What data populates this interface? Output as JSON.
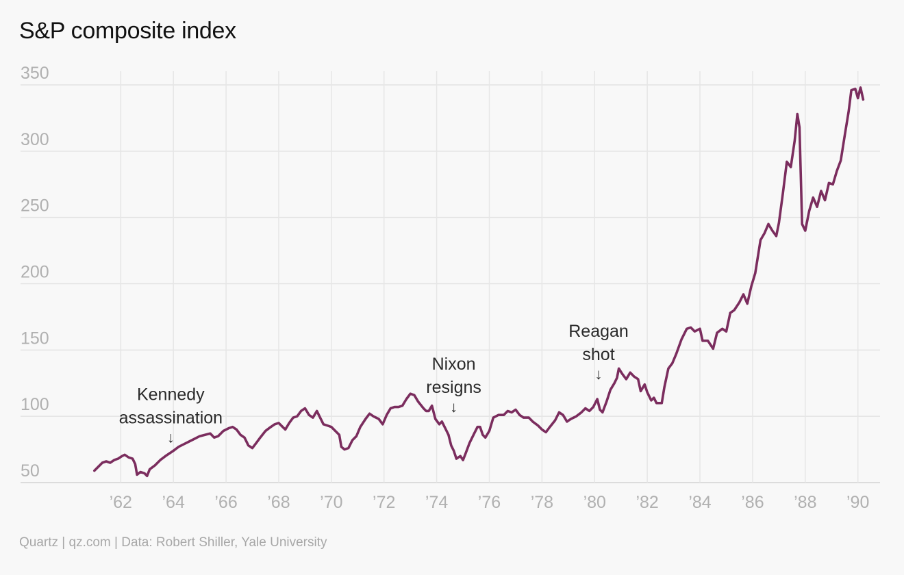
{
  "chart_data": {
    "type": "line",
    "title": "S&P composite index",
    "source": "Quartz | qz.com | Data: Robert Shiller, Yale University",
    "xlabel": "",
    "ylabel": "",
    "xlim": [
      1960.9,
      1990.45
    ],
    "ylim": [
      50,
      350
    ],
    "yticks": [
      50,
      100,
      150,
      200,
      250,
      300,
      350
    ],
    "xticks": [
      {
        "value": 1962,
        "label": "’62"
      },
      {
        "value": 1964,
        "label": "’64"
      },
      {
        "value": 1966,
        "label": "’66"
      },
      {
        "value": 1968,
        "label": "’68"
      },
      {
        "value": 1970,
        "label": "’70"
      },
      {
        "value": 1972,
        "label": "’72"
      },
      {
        "value": 1974,
        "label": "’74"
      },
      {
        "value": 1976,
        "label": "’76"
      },
      {
        "value": 1978,
        "label": "’78"
      },
      {
        "value": 1980,
        "label": "’80"
      },
      {
        "value": 1982,
        "label": "’82"
      },
      {
        "value": 1984,
        "label": "’84"
      },
      {
        "value": 1986,
        "label": "’86"
      },
      {
        "value": 1988,
        "label": "’88"
      },
      {
        "value": 1990,
        "label": "’90"
      }
    ],
    "grid": true,
    "line_color": "#7b2d5e",
    "series": [
      {
        "values": [
          [
            1961.0,
            59
          ],
          [
            1961.15,
            62
          ],
          [
            1961.3,
            65
          ],
          [
            1961.45,
            66
          ],
          [
            1961.6,
            65
          ],
          [
            1961.75,
            67
          ],
          [
            1961.9,
            68
          ],
          [
            1962.05,
            70
          ],
          [
            1962.15,
            71
          ],
          [
            1962.3,
            69
          ],
          [
            1962.45,
            68
          ],
          [
            1962.55,
            64
          ],
          [
            1962.62,
            56
          ],
          [
            1962.75,
            58
          ],
          [
            1962.9,
            57
          ],
          [
            1963.0,
            55
          ],
          [
            1963.1,
            60
          ],
          [
            1963.3,
            63
          ],
          [
            1963.5,
            67
          ],
          [
            1963.7,
            70
          ],
          [
            1963.85,
            72
          ],
          [
            1964.0,
            74
          ],
          [
            1964.2,
            77
          ],
          [
            1964.4,
            79
          ],
          [
            1964.6,
            81
          ],
          [
            1964.8,
            83
          ],
          [
            1965.0,
            85
          ],
          [
            1965.2,
            86
          ],
          [
            1965.4,
            87
          ],
          [
            1965.55,
            84
          ],
          [
            1965.7,
            85
          ],
          [
            1965.9,
            89
          ],
          [
            1966.1,
            91
          ],
          [
            1966.25,
            92
          ],
          [
            1966.4,
            90
          ],
          [
            1966.55,
            86
          ],
          [
            1966.7,
            84
          ],
          [
            1966.85,
            78
          ],
          [
            1967.0,
            76
          ],
          [
            1967.15,
            80
          ],
          [
            1967.3,
            84
          ],
          [
            1967.5,
            89
          ],
          [
            1967.7,
            92
          ],
          [
            1967.85,
            94
          ],
          [
            1968.0,
            95
          ],
          [
            1968.15,
            92
          ],
          [
            1968.25,
            90
          ],
          [
            1968.4,
            95
          ],
          [
            1968.55,
            99
          ],
          [
            1968.7,
            100
          ],
          [
            1968.85,
            104
          ],
          [
            1969.0,
            106
          ],
          [
            1969.15,
            101
          ],
          [
            1969.3,
            99
          ],
          [
            1969.45,
            104
          ],
          [
            1969.55,
            100
          ],
          [
            1969.7,
            94
          ],
          [
            1969.85,
            93
          ],
          [
            1970.0,
            92
          ],
          [
            1970.15,
            89
          ],
          [
            1970.3,
            86
          ],
          [
            1970.38,
            77
          ],
          [
            1970.5,
            75
          ],
          [
            1970.65,
            76
          ],
          [
            1970.8,
            82
          ],
          [
            1970.95,
            85
          ],
          [
            1971.1,
            92
          ],
          [
            1971.3,
            98
          ],
          [
            1971.45,
            102
          ],
          [
            1971.6,
            100
          ],
          [
            1971.8,
            98
          ],
          [
            1971.95,
            94
          ],
          [
            1972.1,
            101
          ],
          [
            1972.25,
            106
          ],
          [
            1972.4,
            107
          ],
          [
            1972.55,
            107
          ],
          [
            1972.7,
            108
          ],
          [
            1972.85,
            113
          ],
          [
            1973.0,
            117
          ],
          [
            1973.15,
            116
          ],
          [
            1973.3,
            111
          ],
          [
            1973.5,
            106
          ],
          [
            1973.6,
            104
          ],
          [
            1973.7,
            104
          ],
          [
            1973.82,
            108
          ],
          [
            1973.95,
            98
          ],
          [
            1974.1,
            94
          ],
          [
            1974.2,
            96
          ],
          [
            1974.35,
            90
          ],
          [
            1974.45,
            86
          ],
          [
            1974.55,
            78
          ],
          [
            1974.65,
            74
          ],
          [
            1974.75,
            68
          ],
          [
            1974.9,
            70
          ],
          [
            1975.0,
            67
          ],
          [
            1975.1,
            72
          ],
          [
            1975.25,
            80
          ],
          [
            1975.4,
            86
          ],
          [
            1975.55,
            92
          ],
          [
            1975.65,
            92
          ],
          [
            1975.75,
            86
          ],
          [
            1975.85,
            84
          ],
          [
            1976.0,
            89
          ],
          [
            1976.15,
            99
          ],
          [
            1976.35,
            101
          ],
          [
            1976.55,
            101
          ],
          [
            1976.7,
            104
          ],
          [
            1976.85,
            103
          ],
          [
            1977.0,
            105
          ],
          [
            1977.15,
            101
          ],
          [
            1977.3,
            99
          ],
          [
            1977.5,
            99
          ],
          [
            1977.65,
            96
          ],
          [
            1977.85,
            93
          ],
          [
            1978.0,
            90
          ],
          [
            1978.15,
            88
          ],
          [
            1978.3,
            92
          ],
          [
            1978.5,
            97
          ],
          [
            1978.65,
            103
          ],
          [
            1978.8,
            101
          ],
          [
            1978.95,
            96
          ],
          [
            1979.1,
            98
          ],
          [
            1979.3,
            100
          ],
          [
            1979.5,
            103
          ],
          [
            1979.65,
            106
          ],
          [
            1979.8,
            104
          ],
          [
            1979.95,
            107
          ],
          [
            1980.1,
            113
          ],
          [
            1980.2,
            105
          ],
          [
            1980.3,
            103
          ],
          [
            1980.45,
            111
          ],
          [
            1980.6,
            120
          ],
          [
            1980.75,
            125
          ],
          [
            1980.85,
            129
          ],
          [
            1980.92,
            136
          ],
          [
            1981.05,
            132
          ],
          [
            1981.2,
            128
          ],
          [
            1981.35,
            133
          ],
          [
            1981.5,
            130
          ],
          [
            1981.65,
            128
          ],
          [
            1981.75,
            119
          ],
          [
            1981.9,
            124
          ],
          [
            1982.0,
            118
          ],
          [
            1982.15,
            112
          ],
          [
            1982.25,
            114
          ],
          [
            1982.35,
            110
          ],
          [
            1982.55,
            110
          ],
          [
            1982.65,
            122
          ],
          [
            1982.8,
            136
          ],
          [
            1982.95,
            140
          ],
          [
            1983.1,
            147
          ],
          [
            1983.3,
            158
          ],
          [
            1983.5,
            166
          ],
          [
            1983.65,
            167
          ],
          [
            1983.8,
            164
          ],
          [
            1984.0,
            166
          ],
          [
            1984.1,
            157
          ],
          [
            1984.3,
            157
          ],
          [
            1984.5,
            151
          ],
          [
            1984.65,
            163
          ],
          [
            1984.85,
            166
          ],
          [
            1985.0,
            164
          ],
          [
            1985.15,
            178
          ],
          [
            1985.3,
            180
          ],
          [
            1985.5,
            186
          ],
          [
            1985.65,
            192
          ],
          [
            1985.8,
            185
          ],
          [
            1985.95,
            198
          ],
          [
            1986.1,
            208
          ],
          [
            1986.3,
            233
          ],
          [
            1986.45,
            238
          ],
          [
            1986.6,
            245
          ],
          [
            1986.75,
            240
          ],
          [
            1986.9,
            236
          ],
          [
            1987.0,
            246
          ],
          [
            1987.15,
            268
          ],
          [
            1987.3,
            292
          ],
          [
            1987.45,
            288
          ],
          [
            1987.6,
            308
          ],
          [
            1987.7,
            328
          ],
          [
            1987.78,
            318
          ],
          [
            1987.88,
            245
          ],
          [
            1988.0,
            240
          ],
          [
            1988.15,
            255
          ],
          [
            1988.3,
            265
          ],
          [
            1988.45,
            258
          ],
          [
            1988.6,
            270
          ],
          [
            1988.75,
            263
          ],
          [
            1988.9,
            276
          ],
          [
            1989.05,
            275
          ],
          [
            1989.2,
            285
          ],
          [
            1989.35,
            293
          ],
          [
            1989.5,
            312
          ],
          [
            1989.65,
            330
          ],
          [
            1989.75,
            346
          ],
          [
            1989.9,
            347
          ],
          [
            1990.0,
            340
          ],
          [
            1990.1,
            348
          ],
          [
            1990.2,
            339
          ]
        ]
      }
    ],
    "annotations": [
      {
        "lines": [
          "Kennedy",
          "assassination"
        ],
        "x": 1963.9,
        "y": 77
      },
      {
        "lines": [
          "Nixon",
          "resigns"
        ],
        "x": 1974.65,
        "y": 100
      },
      {
        "lines": [
          "Reagan",
          "shot"
        ],
        "x": 1980.15,
        "y": 125
      }
    ],
    "arrow_glyph": "↓"
  }
}
